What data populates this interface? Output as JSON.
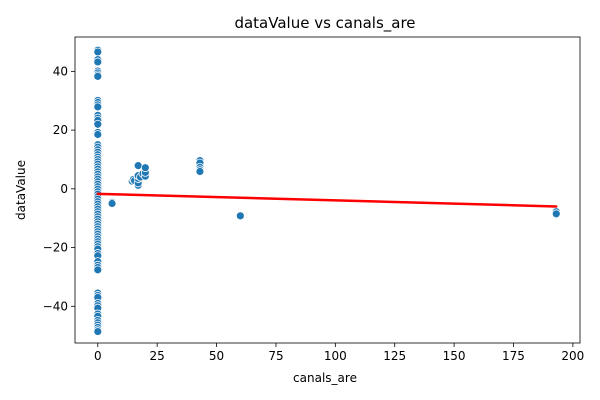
{
  "chart_data": {
    "type": "scatter",
    "title": "dataValue vs canals_are",
    "xlabel": "canals_are",
    "ylabel": "dataValue",
    "xlim": [
      -9.6,
      203.0
    ],
    "ylim": [
      -52.5,
      51.7
    ],
    "xticks": [
      0,
      25,
      50,
      75,
      100,
      125,
      150,
      175,
      200
    ],
    "yticks": [
      -40,
      -20,
      0,
      20,
      40
    ],
    "grid": false,
    "colors": {
      "points": "#1f77b4",
      "regression": "#ff0000"
    },
    "series": [
      {
        "name": "observations",
        "points": [
          [
            0,
            47.2
          ],
          [
            0,
            46.6
          ],
          [
            0,
            44.0
          ],
          [
            0,
            43.2
          ],
          [
            0,
            40.1
          ],
          [
            0,
            39.5
          ],
          [
            0,
            38.8
          ],
          [
            0,
            38.3
          ],
          [
            0,
            30.1
          ],
          [
            0,
            29.4
          ],
          [
            0,
            28.6
          ],
          [
            0,
            27.9
          ],
          [
            0,
            25.0
          ],
          [
            0,
            24.1
          ],
          [
            0,
            23.3
          ],
          [
            0,
            22.0
          ],
          [
            0,
            19.2
          ],
          [
            0,
            18.5
          ],
          [
            0,
            15.0
          ],
          [
            0,
            14.2
          ],
          [
            0,
            13.3
          ],
          [
            0,
            12.5
          ],
          [
            0,
            11.6
          ],
          [
            0,
            10.8
          ],
          [
            0,
            10.0
          ],
          [
            0,
            9.2
          ],
          [
            0,
            8.4
          ],
          [
            0,
            7.5
          ],
          [
            0,
            6.7
          ],
          [
            0,
            5.8
          ],
          [
            0,
            5.0
          ],
          [
            0,
            4.1
          ],
          [
            0,
            3.3
          ],
          [
            0,
            2.4
          ],
          [
            0,
            1.6
          ],
          [
            0,
            0.7
          ],
          [
            0,
            -0.1
          ],
          [
            0,
            -1.0
          ],
          [
            0,
            -1.8
          ],
          [
            0,
            -2.7
          ],
          [
            0,
            -3.5
          ],
          [
            0,
            -4.4
          ],
          [
            0,
            -5.2
          ],
          [
            0,
            -6.1
          ],
          [
            0,
            -6.9
          ],
          [
            0,
            -7.8
          ],
          [
            0,
            -8.6
          ],
          [
            0,
            -9.5
          ],
          [
            0,
            -10.3
          ],
          [
            0,
            -11.2
          ],
          [
            0,
            -12.0
          ],
          [
            0,
            -12.9
          ],
          [
            0,
            -13.7
          ],
          [
            0,
            -14.6
          ],
          [
            0,
            -15.4
          ],
          [
            0,
            -16.3
          ],
          [
            0,
            -17.1
          ],
          [
            0,
            -18.0
          ],
          [
            0,
            -18.8
          ],
          [
            0,
            -19.7
          ],
          [
            0,
            -20.5
          ],
          [
            0,
            -22.0
          ],
          [
            0,
            -22.8
          ],
          [
            0,
            -24.8
          ],
          [
            0,
            -26.0
          ],
          [
            0,
            -26.8
          ],
          [
            0,
            -27.6
          ],
          [
            0,
            -35.5
          ],
          [
            0,
            -36.3
          ],
          [
            0,
            -37.0
          ],
          [
            0,
            -39.0
          ],
          [
            0,
            -39.8
          ],
          [
            0,
            -40.6
          ],
          [
            0,
            -42.6
          ],
          [
            0,
            -43.4
          ],
          [
            0,
            -44.8
          ],
          [
            0,
            -45.6
          ],
          [
            0,
            -46.4
          ],
          [
            0,
            -47.2
          ],
          [
            0,
            -48.0
          ],
          [
            0,
            -48.6
          ],
          [
            6,
            -4.6
          ],
          [
            6,
            -5.0
          ],
          [
            14.5,
            2.6
          ],
          [
            15,
            3.2
          ],
          [
            15.5,
            2.8
          ],
          [
            17,
            1.2
          ],
          [
            17,
            2.0
          ],
          [
            17,
            3.5
          ],
          [
            17,
            4.5
          ],
          [
            17,
            7.9
          ],
          [
            18,
            4.0
          ],
          [
            19,
            5.2
          ],
          [
            20,
            4.3
          ],
          [
            20,
            5.6
          ],
          [
            20,
            7.2
          ],
          [
            43,
            9.6
          ],
          [
            43,
            8.8
          ],
          [
            43,
            7.3
          ],
          [
            43,
            6.5
          ],
          [
            43,
            5.9
          ],
          [
            60,
            -9.2
          ],
          [
            193,
            -7.8
          ],
          [
            193,
            -8.5
          ]
        ]
      }
    ],
    "regression_line": {
      "x": [
        0,
        193
      ],
      "y": [
        -1.7,
        -6.0
      ]
    }
  }
}
